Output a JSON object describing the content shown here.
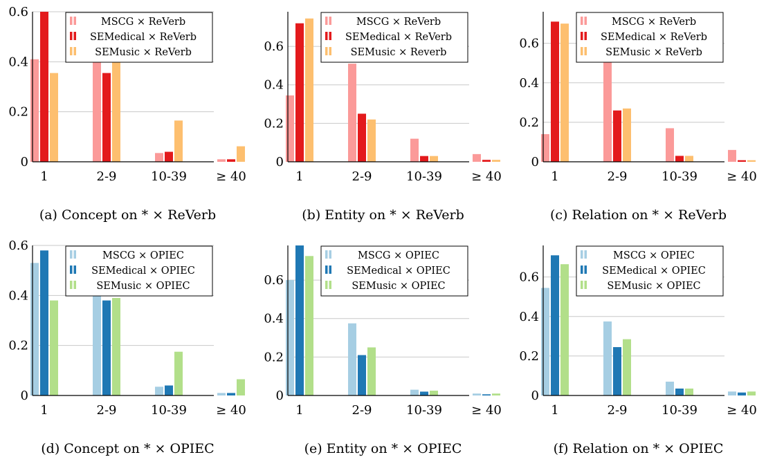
{
  "chart_data": [
    {
      "type": "bar",
      "caption": "(a) Concept on * × ReVerb",
      "categories": [
        "1",
        "2-9",
        "10-39",
        "≥ 40"
      ],
      "yticks": [
        "0",
        "0.2",
        "0.4",
        "0.6"
      ],
      "ylim": [
        0,
        0.6
      ],
      "grid": true,
      "legend_position": "top-right",
      "series": [
        {
          "name": "MSCG × ReVerb",
          "color": "#fb9a99",
          "values": [
            0.41,
            0.45,
            0.035,
            0.01
          ]
        },
        {
          "name": "SEMedical × ReVerb",
          "color": "#e31a1c",
          "values": [
            0.6,
            0.355,
            0.04,
            0.01
          ]
        },
        {
          "name": "SEMusic × ReVerb",
          "color": "#fdbf6f",
          "values": [
            0.355,
            0.425,
            0.165,
            0.062
          ]
        }
      ]
    },
    {
      "type": "bar",
      "caption": "(b) Entity on * × ReVerb",
      "categories": [
        "1",
        "2-9",
        "10-39",
        "≥ 40"
      ],
      "yticks": [
        "0",
        "0.2",
        "0.4",
        "0.6"
      ],
      "ylim": [
        0,
        0.78
      ],
      "grid": true,
      "legend_position": "top-right",
      "series": [
        {
          "name": "MSCG × ReVerb",
          "color": "#fb9a99",
          "values": [
            0.345,
            0.51,
            0.12,
            0.04
          ]
        },
        {
          "name": "SEMedical × ReVerb",
          "color": "#e31a1c",
          "values": [
            0.72,
            0.25,
            0.03,
            0.01
          ]
        },
        {
          "name": "SEMusic × Reverb",
          "color": "#fdbf6f",
          "values": [
            0.745,
            0.22,
            0.03,
            0.01
          ]
        }
      ]
    },
    {
      "type": "bar",
      "caption": "(c) Relation on * × ReVerb",
      "categories": [
        "1",
        "2-9",
        "10-39",
        "≥ 40"
      ],
      "yticks": [
        "0",
        "0.2",
        "0.4",
        "0.6"
      ],
      "ylim": [
        0,
        0.76
      ],
      "grid": true,
      "legend_position": "top-right",
      "series": [
        {
          "name": "MSCG × ReVerb",
          "color": "#fb9a99",
          "values": [
            0.14,
            0.64,
            0.17,
            0.06
          ]
        },
        {
          "name": "SEMedical × ReVerb",
          "color": "#e31a1c",
          "values": [
            0.71,
            0.26,
            0.03,
            0.008
          ]
        },
        {
          "name": "SEMusic × ReVerb",
          "color": "#fdbf6f",
          "values": [
            0.7,
            0.27,
            0.03,
            0.008
          ]
        }
      ]
    },
    {
      "type": "bar",
      "caption": "(d) Concept on * × OPIEC",
      "categories": [
        "1",
        "2-9",
        "10-39",
        "≥ 40"
      ],
      "yticks": [
        "0",
        "0.2",
        "0.4",
        "0.6"
      ],
      "ylim": [
        0,
        0.6
      ],
      "grid": true,
      "legend_position": "top-right",
      "series": [
        {
          "name": "MSCG × OPIEC",
          "color": "#a6cee3",
          "values": [
            0.53,
            0.44,
            0.035,
            0.01
          ]
        },
        {
          "name": "SEMedical × OPIEC",
          "color": "#1f78b4",
          "values": [
            0.58,
            0.38,
            0.04,
            0.01
          ]
        },
        {
          "name": "SEMusic × OPIEC",
          "color": "#b2df8a",
          "values": [
            0.38,
            0.39,
            0.175,
            0.065
          ]
        }
      ]
    },
    {
      "type": "bar",
      "caption": "(e) Entity on * × OPIEC",
      "categories": [
        "1",
        "2-9",
        "10-39",
        "≥ 40"
      ],
      "yticks": [
        "0",
        "0.2",
        "0.4",
        "0.6"
      ],
      "ylim": [
        0,
        0.78
      ],
      "grid": true,
      "legend_position": "top-right",
      "series": [
        {
          "name": "MSCG × OPIEC",
          "color": "#a6cee3",
          "values": [
            0.6,
            0.375,
            0.03,
            0.01
          ]
        },
        {
          "name": "SEMedical × OPIEC",
          "color": "#1f78b4",
          "values": [
            0.78,
            0.21,
            0.02,
            0.006
          ]
        },
        {
          "name": "SEMusic × OPIEC",
          "color": "#b2df8a",
          "values": [
            0.725,
            0.25,
            0.025,
            0.01
          ]
        }
      ]
    },
    {
      "type": "bar",
      "caption": "(f) Relation on * × OPIEC",
      "categories": [
        "1",
        "2-9",
        "10-39",
        "≥ 40"
      ],
      "yticks": [
        "0",
        "0.2",
        "0.4",
        "0.6"
      ],
      "ylim": [
        0,
        0.76
      ],
      "grid": true,
      "legend_position": "top-right",
      "series": [
        {
          "name": "MSCG × OPIEC",
          "color": "#a6cee3",
          "values": [
            0.545,
            0.375,
            0.07,
            0.02
          ]
        },
        {
          "name": "SEMedical × OPIEC",
          "color": "#1f78b4",
          "values": [
            0.71,
            0.245,
            0.035,
            0.015
          ]
        },
        {
          "name": "SEMusic × OPIEC",
          "color": "#b2df8a",
          "values": [
            0.665,
            0.285,
            0.035,
            0.02
          ]
        }
      ]
    }
  ]
}
